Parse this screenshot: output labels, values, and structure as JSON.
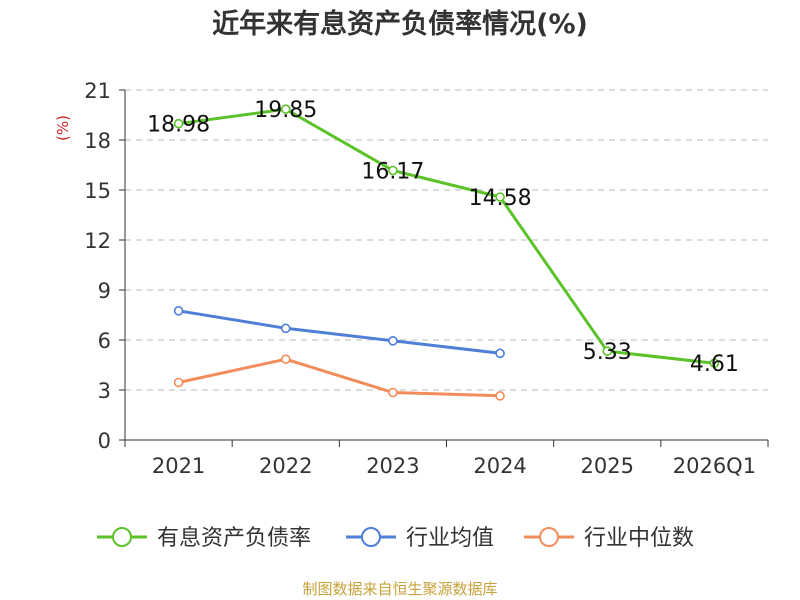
{
  "chart_data": {
    "type": "line",
    "title": "近年来有息资产负债率情况(%)",
    "ylabel": "(%)",
    "xlabel": "",
    "categories": [
      "2021",
      "2022",
      "2023",
      "2024",
      "2025",
      "2026Q1"
    ],
    "ylim": [
      0,
      21
    ],
    "yticks": [
      0,
      3,
      6,
      9,
      12,
      15,
      18,
      21
    ],
    "grid": true,
    "legend_position": "bottom",
    "series": [
      {
        "name": "有息资产负债率",
        "color": "#5bc229",
        "values": [
          18.98,
          19.85,
          16.17,
          14.58,
          5.33,
          4.61
        ],
        "labels": [
          "18.98",
          "19.85",
          "16.17",
          "14.58",
          "5.33",
          "4.61"
        ]
      },
      {
        "name": "行业均值",
        "color": "#4f7fd8",
        "values": [
          7.75,
          6.7,
          5.95,
          5.2,
          null,
          null
        ]
      },
      {
        "name": "行业中位数",
        "color": "#f28d5b",
        "values": [
          3.45,
          4.85,
          2.85,
          2.65,
          null,
          null
        ]
      }
    ],
    "source": "制图数据来自恒生聚源数据库"
  }
}
